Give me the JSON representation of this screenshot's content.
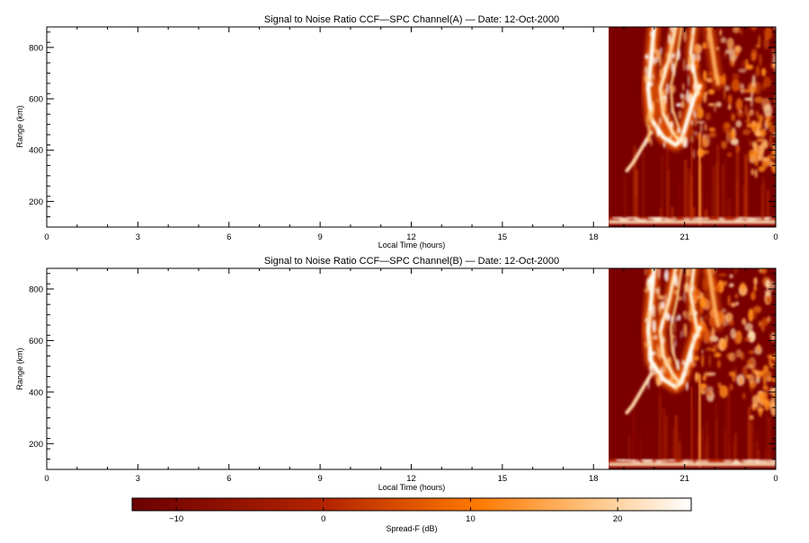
{
  "chart_data": [
    {
      "type": "heatmap",
      "title": "Signal to Noise Ratio CCF—SPC Channel(A) — Date: 12-Oct-2000",
      "xlabel": "Local Time (hours)",
      "ylabel": "Range (km)",
      "xticks": [
        "0",
        "3",
        "6",
        "9",
        "12",
        "15",
        "18",
        "21",
        "0"
      ],
      "yticks": [
        200,
        400,
        600,
        800
      ],
      "xlim": [
        0,
        24
      ],
      "ylim": [
        100,
        880
      ],
      "data_start_hour": 18.5,
      "features": {
        "spread_f_plume": {
          "time_range": [
            19.5,
            21.3
          ],
          "range_km": [
            330,
            880
          ]
        },
        "e_layer_band": {
          "range_km": [
            100,
            140
          ]
        },
        "vertical_column": {
          "time": 21.5,
          "range_km": [
            100,
            460
          ]
        }
      }
    },
    {
      "type": "heatmap",
      "title": "Signal to Noise Ratio CCF—SPC Channel(B) — Date: 12-Oct-2000",
      "xlabel": "Local Time (hours)",
      "ylabel": "Range (km)",
      "xticks": [
        "0",
        "3",
        "6",
        "9",
        "12",
        "15",
        "18",
        "21",
        "0"
      ],
      "yticks": [
        200,
        400,
        600,
        800
      ],
      "xlim": [
        0,
        24
      ],
      "ylim": [
        100,
        880
      ],
      "data_start_hour": 18.5,
      "features": {
        "spread_f_plume": {
          "time_range": [
            19.5,
            21.3
          ],
          "range_km": [
            330,
            880
          ]
        },
        "e_layer_band": {
          "range_km": [
            100,
            140
          ]
        },
        "vertical_column": {
          "time": 21.5,
          "range_km": [
            100,
            460
          ]
        }
      }
    }
  ],
  "colorbar": {
    "label": "Spread-F (dB)",
    "ticks": [
      "−10",
      "0",
      "10",
      "20"
    ],
    "tick_values": [
      -10,
      0,
      10,
      20
    ],
    "range": [
      -13,
      25
    ],
    "colors": [
      "#6b0000",
      "#b52400",
      "#ff7a00",
      "#ffffff"
    ]
  }
}
